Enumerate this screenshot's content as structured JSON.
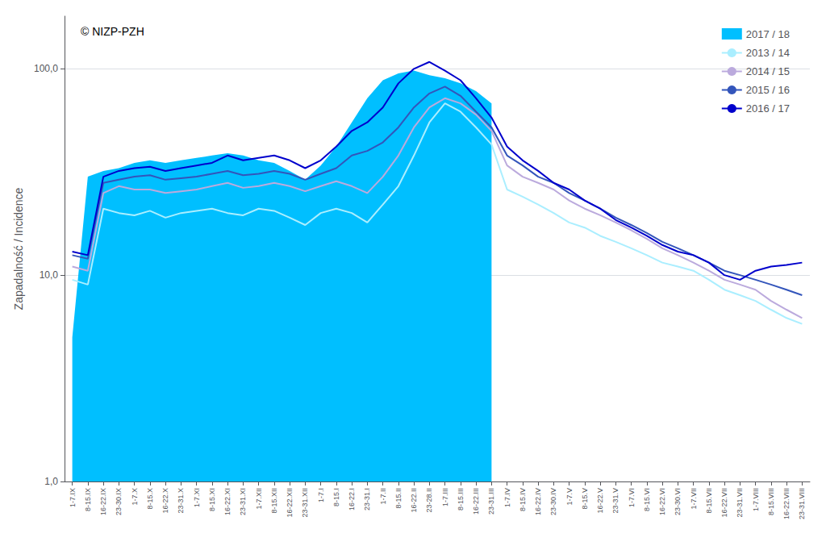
{
  "chart_data": {
    "type": "line",
    "ylabel": "Zapadalność / Incidence",
    "annotations": [
      {
        "text": "© NIZP-PZH"
      }
    ],
    "categories": [
      "1-7.IX",
      "8-15.IX",
      "16-22.IX",
      "23-30.IX",
      "1-7.X",
      "8-15.X",
      "16-22.X",
      "23-31.X",
      "1-7.XI",
      "8-15.XI",
      "16-22.XI",
      "23-31.XI",
      "1-7.XII",
      "8-15.XII",
      "16-22.XII",
      "23-31.XII",
      "1-7.I",
      "8-15.I",
      "16-22.I",
      "23-31.I",
      "1-7.II",
      "8-15.II",
      "16-22.II",
      "23-28.II",
      "1-7.III",
      "8-15.III",
      "16-22.III",
      "23-31.III",
      "1-7.IV",
      "8-15.IV",
      "16-22.IV",
      "23-30.IV",
      "1-7.V",
      "8-15.V",
      "16-22.V",
      "23-31.V",
      "1-7.VI",
      "8-15.VI",
      "16-22.VI",
      "23-30.VI",
      "1-7.VII",
      "8-15.VII",
      "16-22.VII",
      "23-31.VII",
      "1-7.VIII",
      "8-15.VIII",
      "16-22.VIII",
      "23-31.VIII"
    ],
    "series": [
      {
        "name": "2017 / 18",
        "type": "area",
        "color": "#00BFFF",
        "values": [
          5.0,
          30.0,
          32.0,
          33.0,
          35.0,
          36.0,
          35.0,
          36.0,
          37.0,
          38.0,
          39.0,
          38.0,
          36.0,
          35.0,
          32.0,
          29.0,
          34.0,
          42.0,
          55.0,
          72.0,
          88.0,
          95.0,
          98.0,
          93.0,
          90.0,
          85.0,
          78.0,
          68.0,
          null,
          null,
          null,
          null,
          null,
          null,
          null,
          null,
          null,
          null,
          null,
          null,
          null,
          null,
          null,
          null,
          null,
          null,
          null,
          null
        ],
        "lower": [
          1.0,
          1.0,
          1.0,
          1.0,
          1.0,
          1.0,
          1.0,
          1.0,
          1.0,
          1.0,
          1.0,
          1.0,
          1.0,
          1.0,
          1.0,
          1.0,
          1.0,
          1.0,
          1.0,
          1.0,
          1.0,
          1.0,
          1.0,
          1.0,
          1.0,
          1.0,
          1.0,
          1.0,
          null,
          null,
          null,
          null,
          null,
          null,
          null,
          null,
          null,
          null,
          null,
          null,
          null,
          null,
          null,
          null,
          null,
          null,
          null,
          null
        ]
      },
      {
        "name": "2013 / 14",
        "type": "line",
        "color": "#AAEEFF",
        "values": [
          9.5,
          9.0,
          21.0,
          20.0,
          19.5,
          20.5,
          19.0,
          20.0,
          20.5,
          21.0,
          20.0,
          19.5,
          21.0,
          20.5,
          19.0,
          17.5,
          20.0,
          21.0,
          20.0,
          18.0,
          22.0,
          27.0,
          38.0,
          55.0,
          68.0,
          62.0,
          52.0,
          43.0,
          26.0,
          24.0,
          22.0,
          20.0,
          18.0,
          17.0,
          15.5,
          14.5,
          13.5,
          12.5,
          11.5,
          11.0,
          10.5,
          9.5,
          8.5,
          8.0,
          7.5,
          6.8,
          6.2,
          5.8
        ]
      },
      {
        "name": "2014 / 15",
        "type": "line",
        "color": "#BBAADD",
        "values": [
          11.0,
          10.5,
          25.0,
          27.0,
          26.0,
          26.0,
          25.0,
          25.5,
          26.0,
          27.0,
          28.0,
          26.5,
          27.0,
          28.0,
          27.0,
          25.5,
          27.0,
          28.5,
          27.0,
          25.0,
          30.0,
          38.0,
          52.0,
          65.0,
          72.0,
          68.0,
          60.0,
          50.0,
          34.0,
          30.0,
          28.0,
          26.0,
          23.0,
          21.0,
          19.5,
          18.0,
          16.5,
          15.0,
          13.5,
          12.5,
          11.5,
          10.5,
          9.5,
          9.0,
          8.5,
          7.5,
          6.8,
          6.2
        ]
      },
      {
        "name": "2015 / 16",
        "type": "line",
        "color": "#3355BB",
        "values": [
          12.5,
          12.0,
          28.0,
          29.0,
          30.0,
          30.5,
          29.0,
          29.5,
          30.0,
          31.0,
          32.0,
          30.5,
          31.0,
          32.0,
          31.0,
          29.0,
          31.0,
          33.0,
          38.0,
          40.0,
          44.0,
          52.0,
          65.0,
          76.0,
          82.0,
          74.0,
          62.0,
          52.0,
          38.0,
          34.0,
          30.0,
          28.0,
          25.0,
          23.0,
          21.0,
          19.0,
          17.5,
          16.0,
          14.5,
          13.5,
          12.5,
          11.5,
          10.5,
          10.0,
          9.5,
          9.0,
          8.5,
          8.0
        ]
      },
      {
        "name": "2016 / 17",
        "type": "line",
        "color": "#0000CC",
        "values": [
          13.0,
          12.5,
          30.0,
          32.0,
          33.0,
          33.5,
          32.0,
          33.0,
          34.0,
          35.0,
          38.0,
          36.0,
          37.0,
          38.0,
          36.0,
          33.0,
          36.0,
          42.0,
          50.0,
          55.0,
          65.0,
          85.0,
          100.0,
          108.0,
          98.0,
          88.0,
          72.0,
          58.0,
          42.0,
          36.0,
          32.0,
          28.0,
          26.0,
          23.0,
          21.0,
          18.5,
          17.0,
          15.5,
          14.0,
          13.0,
          12.5,
          11.5,
          10.0,
          9.5,
          10.5,
          11.0,
          11.2,
          11.5
        ]
      }
    ],
    "log": "y",
    "ylim": [
      1.0,
      180.0
    ],
    "yticks": [
      {
        "value": 1.0,
        "label": "1,0"
      },
      {
        "value": 10.0,
        "label": "10,0"
      },
      {
        "value": 100.0,
        "label": "100,0"
      }
    ],
    "grid": true,
    "legend": "upper right"
  }
}
